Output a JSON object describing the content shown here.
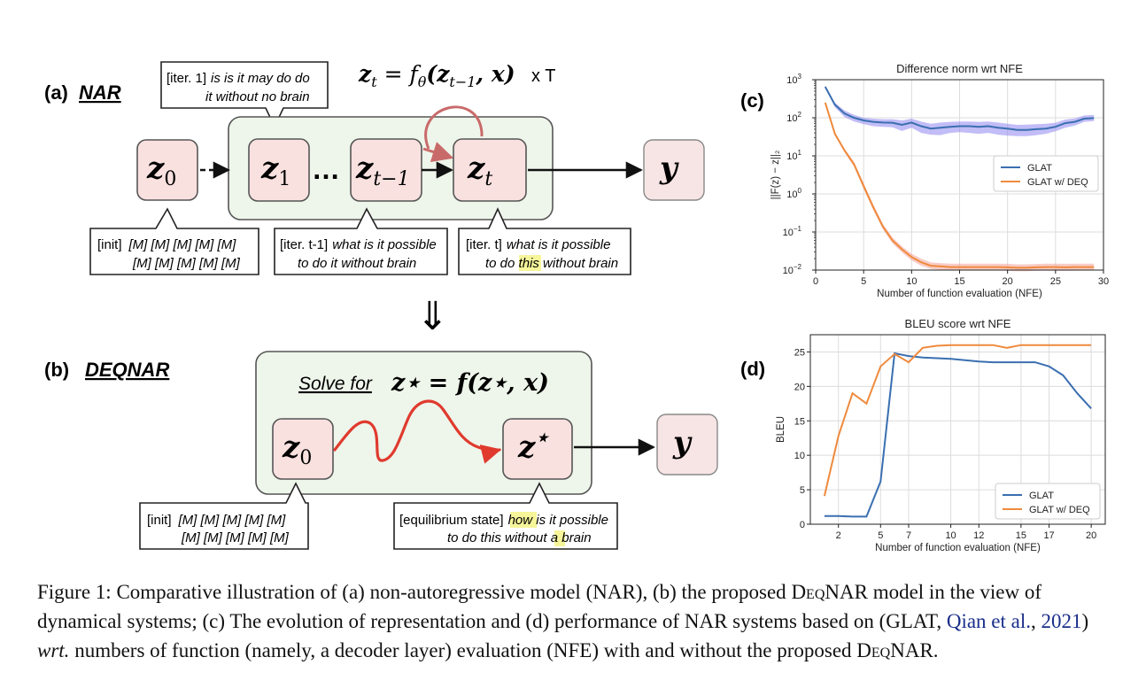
{
  "panel_a": {
    "label": "(a)",
    "name": "NAR",
    "formula_main": "z",
    "formula_sub": "t",
    "formula_eq": " = f",
    "formula_theta": "θ",
    "formula_args": "(z",
    "formula_args_sub": "t−1",
    "formula_args_end": ", x)",
    "times": "x T",
    "nodes": {
      "z0": "z",
      "z0_sub": "0",
      "z1": "z",
      "z1_sub": "1",
      "ellipsis": "…",
      "zt1": "z",
      "zt1_sub": "t−1",
      "zt": "z",
      "zt_sub": "t",
      "y": "y"
    },
    "bubble_iter1": {
      "tag": "[iter. 1]",
      "line1": "is is it may do do",
      "line2": "it without no brain"
    },
    "bubble_init": {
      "tag": "[init]",
      "line1": "[M] [M] [M] [M] [M]",
      "line2": "[M] [M] [M] [M] [M]"
    },
    "bubble_itert1": {
      "tag": "[iter. t-1]",
      "line1": "what is it possible",
      "line2": "to do it without brain"
    },
    "bubble_itert": {
      "tag": "[iter. t]",
      "line1": "what is it possible",
      "line2a": "to do ",
      "line2_highlight": "this",
      "line2b": " without brain"
    }
  },
  "arrow_down": "⇓",
  "panel_b": {
    "label": "(b)",
    "name": "DEQNAR",
    "solve_for": "Solve for",
    "formula": "z⋆ = f(z⋆, x)",
    "nodes": {
      "z0": "z",
      "z0_sub": "0",
      "zstar": "z",
      "zstar_sup": "⋆",
      "y": "y"
    },
    "bubble_init": {
      "tag": "[init]",
      "line1": "[M] [M] [M] [M] [M]",
      "line2": "[M] [M] [M] [M] [M]"
    },
    "bubble_eq": {
      "tag": "[equilibrium state]",
      "line1_highlight": "how",
      "line1b": " is it possible",
      "line2a": "to do this without ",
      "line2_highlight": "a",
      "line2b": " brain"
    }
  },
  "colors": {
    "node_fill": "#f9e1e0",
    "node_stroke": "#5a5a5a",
    "box_fill": "#eef5ea",
    "loop_arrow": "#c96a6a",
    "squiggle": "#e03a2e",
    "highlight": "#f6f59a",
    "glat": "#3a6fb0",
    "glat_deq": "#ef8a3c",
    "band_glat": "#8f86f0",
    "band_deq": "#f2a39a",
    "cite": "#1a2e8a"
  },
  "chart_data": [
    {
      "panel_label": "(c)",
      "type": "line",
      "title": "Difference norm wrt NFE",
      "xlabel": "Number of function evaluation (NFE)",
      "ylabel": "||F(z) − z||₂",
      "yscale": "log",
      "xlim": [
        0,
        30
      ],
      "ylim": [
        0.01,
        1000
      ],
      "xticks": [
        0,
        5,
        10,
        15,
        20,
        25,
        30
      ],
      "xtick_labels": [
        "0",
        "5",
        "10",
        "15",
        "20",
        "25",
        "30"
      ],
      "yticks": [
        0.01,
        0.1,
        1,
        10,
        100,
        1000
      ],
      "ytick_bases": [
        "10",
        "10",
        "10",
        "10",
        "10",
        "10"
      ],
      "ytick_exps": [
        "−2",
        "−1",
        "0",
        "1",
        "2",
        "3"
      ],
      "grid": true,
      "legend": "center-right",
      "series": [
        {
          "name": "GLAT",
          "x": [
            1,
            2,
            3,
            4,
            5,
            6,
            7,
            8,
            9,
            10,
            11,
            12,
            13,
            14,
            15,
            16,
            17,
            18,
            19,
            20,
            21,
            22,
            23,
            24,
            25,
            26,
            27,
            28,
            29
          ],
          "values": [
            650,
            220,
            130,
            100,
            85,
            78,
            75,
            74,
            65,
            75,
            60,
            52,
            55,
            58,
            60,
            60,
            58,
            60,
            55,
            52,
            48,
            48,
            50,
            52,
            58,
            72,
            78,
            95,
            98
          ],
          "lower": [
            600,
            190,
            105,
            80,
            68,
            60,
            58,
            56,
            45,
            55,
            40,
            36,
            35,
            40,
            42,
            40,
            38,
            40,
            36,
            34,
            33,
            33,
            35,
            38,
            44,
            55,
            62,
            78,
            82
          ],
          "upper": [
            700,
            250,
            155,
            120,
            100,
            95,
            92,
            92,
            85,
            95,
            80,
            70,
            75,
            78,
            80,
            80,
            78,
            80,
            75,
            70,
            65,
            66,
            68,
            70,
            74,
            90,
            96,
            115,
            118
          ]
        },
        {
          "name": "GLAT w/ DEQ",
          "x": [
            1,
            2,
            3,
            4,
            5,
            6,
            7,
            8,
            9,
            10,
            11,
            12,
            13,
            14,
            15,
            16,
            17,
            18,
            19,
            20,
            21,
            22,
            23,
            24,
            25,
            26,
            27,
            28,
            29
          ],
          "values": [
            250,
            38,
            14,
            6,
            1.6,
            0.45,
            0.14,
            0.06,
            0.035,
            0.022,
            0.016,
            0.013,
            0.0125,
            0.012,
            0.012,
            0.012,
            0.012,
            0.012,
            0.012,
            0.0118,
            0.0115,
            0.0115,
            0.0118,
            0.012,
            0.012,
            0.0118,
            0.012,
            0.012,
            0.012
          ],
          "lower": [
            230,
            34,
            12.5,
            5.2,
            1.35,
            0.38,
            0.12,
            0.05,
            0.029,
            0.018,
            0.013,
            0.0108,
            0.0102,
            0.0098,
            0.0099,
            0.0099,
            0.0099,
            0.0098,
            0.0098,
            0.0096,
            0.0094,
            0.0094,
            0.0096,
            0.0097,
            0.0097,
            0.0096,
            0.0097,
            0.0098,
            0.0098
          ],
          "upper": [
            270,
            42,
            15.5,
            6.9,
            1.9,
            0.53,
            0.165,
            0.072,
            0.042,
            0.027,
            0.02,
            0.016,
            0.0153,
            0.0148,
            0.0148,
            0.0148,
            0.0148,
            0.0148,
            0.0148,
            0.0146,
            0.0142,
            0.0142,
            0.0145,
            0.0148,
            0.0148,
            0.0146,
            0.0148,
            0.0148,
            0.0148
          ]
        }
      ]
    },
    {
      "panel_label": "(d)",
      "type": "line",
      "title": "BLEU score wrt NFE",
      "xlabel": "Number of function evaluation (NFE)",
      "ylabel": "BLEU",
      "xlim": [
        0,
        21
      ],
      "ylim": [
        0,
        27.5
      ],
      "xticks": [
        2,
        5,
        7,
        10,
        12,
        15,
        17,
        20
      ],
      "xtick_labels": [
        "2",
        "5",
        "7",
        "10",
        "12",
        "15",
        "17",
        "20"
      ],
      "yticks": [
        0,
        5,
        10,
        15,
        20,
        25
      ],
      "ytick_labels": [
        "0",
        "5",
        "10",
        "15",
        "20",
        "25"
      ],
      "grid": true,
      "legend": "lower-right",
      "series": [
        {
          "name": "GLAT",
          "x": [
            1,
            2,
            3,
            4,
            5,
            6,
            7,
            8,
            9,
            10,
            11,
            12,
            13,
            14,
            15,
            16,
            17,
            18,
            19,
            20
          ],
          "values": [
            1.2,
            1.2,
            1.1,
            1.1,
            6.2,
            24.8,
            24.4,
            24.2,
            24.1,
            24.0,
            23.8,
            23.6,
            23.5,
            23.5,
            23.5,
            23.5,
            22.9,
            21.6,
            19.0,
            16.8
          ]
        },
        {
          "name": "GLAT w/ DEQ",
          "x": [
            1,
            2,
            3,
            4,
            5,
            6,
            7,
            8,
            9,
            10,
            11,
            12,
            13,
            14,
            15,
            16,
            17,
            18,
            19,
            20
          ],
          "values": [
            4.1,
            12.8,
            19.0,
            17.5,
            22.9,
            24.7,
            23.5,
            25.6,
            25.9,
            26.0,
            26.0,
            26.0,
            26.0,
            25.6,
            26.0,
            26.0,
            26.0,
            26.0,
            26.0,
            26.0
          ]
        }
      ]
    }
  ],
  "caption": {
    "p1": "Figure 1: Comparative illustration of (a) non-autoregressive model (NAR), (b) the proposed ",
    "name1": "DeqNAR",
    "p2": " model in the view of dynamical systems; (c) The evolution of representation and (d) performance of NAR systems based on (GLAT, ",
    "cite_author": "Qian et al.",
    "cite_sep": ", ",
    "cite_year": "2021",
    "p3": ") ",
    "wrt": "wrt.",
    "p4": " numbers of function (namely, a decoder layer) evaluation (NFE) with and without the proposed ",
    "name2": "DeqNAR",
    "p5": "."
  }
}
